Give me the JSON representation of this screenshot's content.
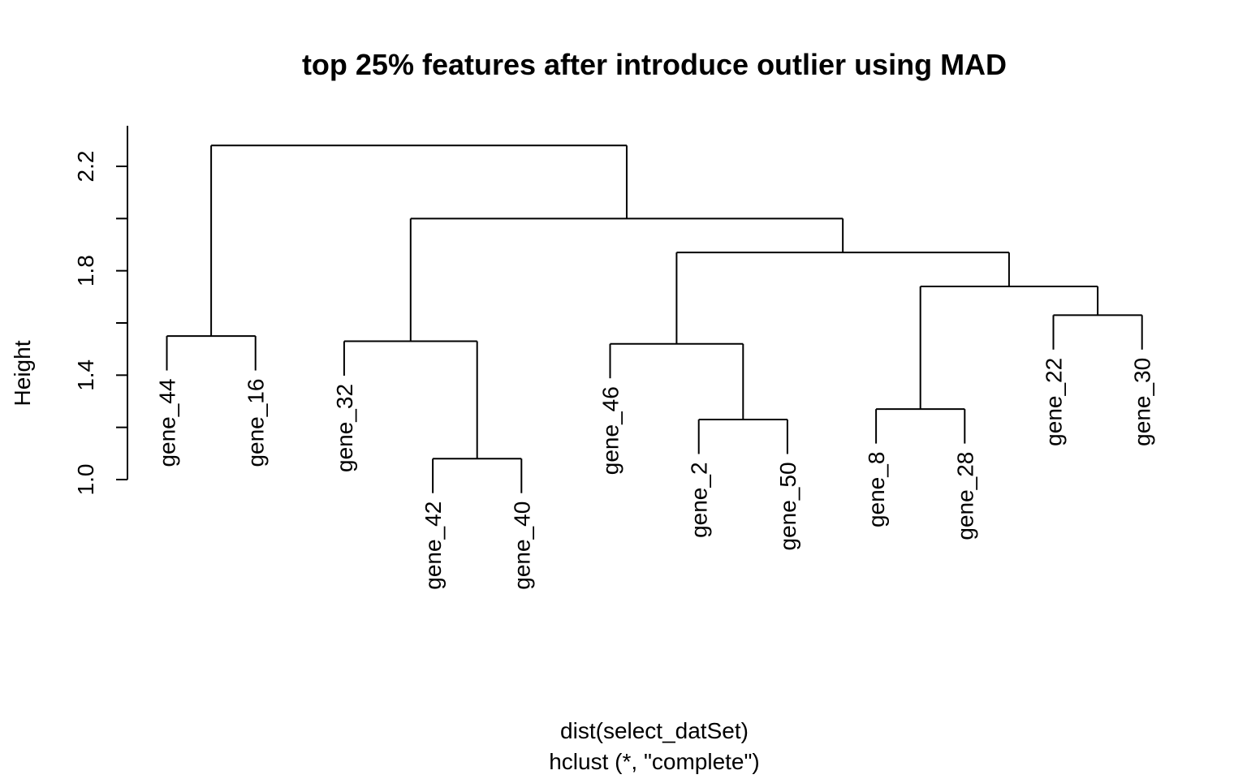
{
  "chart_data": {
    "type": "dendrogram",
    "title": "top 25% features after introduce outlier using MAD",
    "ylabel": "Height",
    "xlabel_line1": "dist(select_datSet)",
    "xlabel_line2": "hclust (*, \"complete\")",
    "ylim": [
      1.0,
      2.32
    ],
    "yticks": [
      1.0,
      1.4,
      1.8,
      2.2
    ],
    "ytick_labels": [
      "1.0",
      "1.4",
      "1.8",
      "2.2"
    ],
    "leaf_order": [
      "gene_44",
      "gene_16",
      "gene_32",
      "gene_42",
      "gene_40",
      "gene_46",
      "gene_2",
      "gene_50",
      "gene_8",
      "gene_28",
      "gene_22",
      "gene_30"
    ],
    "merges": [
      {
        "left": "gene_42",
        "right": "gene_40",
        "height": 1.08
      },
      {
        "left": "gene_2",
        "right": "gene_50",
        "height": 1.23
      },
      {
        "left": "gene_8",
        "right": "gene_28",
        "height": 1.27
      },
      {
        "left": "gene_44",
        "right": "gene_16",
        "height": 1.55
      },
      {
        "left": "gene_32",
        "right": "m1",
        "height": 1.53
      },
      {
        "left": "gene_46",
        "right": "m2",
        "height": 1.52
      },
      {
        "left": "gene_22",
        "right": "gene_30",
        "height": 1.63
      },
      {
        "left": "m3",
        "right": "m7",
        "height": 1.74
      },
      {
        "left": "m6",
        "right": "m8",
        "height": 1.87
      },
      {
        "left": "m5",
        "right": "m9",
        "height": 2.0
      },
      {
        "left": "m4",
        "right": "m10",
        "height": 2.28
      }
    ]
  }
}
